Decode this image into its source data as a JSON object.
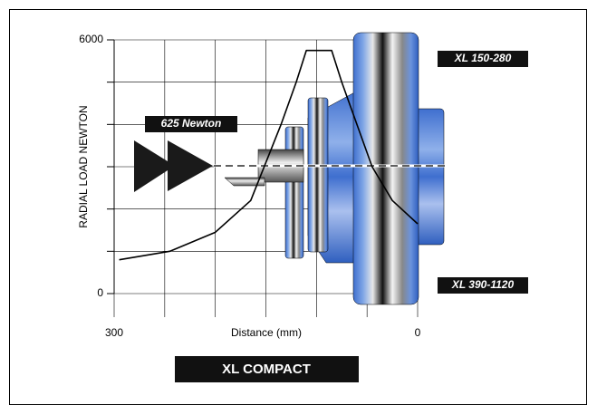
{
  "chart_data": {
    "type": "line",
    "title": "XL COMPACT",
    "ylabel": "RADIAL LOAD NEWTON",
    "xlabel": "Distance (mm)",
    "x": [
      295,
      245,
      200,
      165,
      150,
      135,
      120,
      110,
      85,
      75,
      60,
      45,
      25,
      0
    ],
    "series": [
      {
        "color": "#000000",
        "values": [
          800,
          1000,
          1450,
          2200,
          3100,
          4000,
          5000,
          5750,
          5750,
          5000,
          4000,
          3000,
          2200,
          1650
        ]
      }
    ],
    "xlim": [
      300,
      0
    ],
    "ylim": [
      0,
      6000
    ],
    "xticks": [
      300,
      0
    ],
    "yticks": [
      0,
      6000
    ],
    "xgrid": [
      300,
      250,
      200,
      150,
      100,
      50,
      0
    ],
    "ygrid": [
      0,
      1000,
      2000,
      3000,
      4000,
      5000,
      6000
    ],
    "annotations": [
      {
        "text": "625 Newton"
      },
      {
        "text": "XL 150-280"
      },
      {
        "text": "XL 390-1120"
      }
    ]
  }
}
